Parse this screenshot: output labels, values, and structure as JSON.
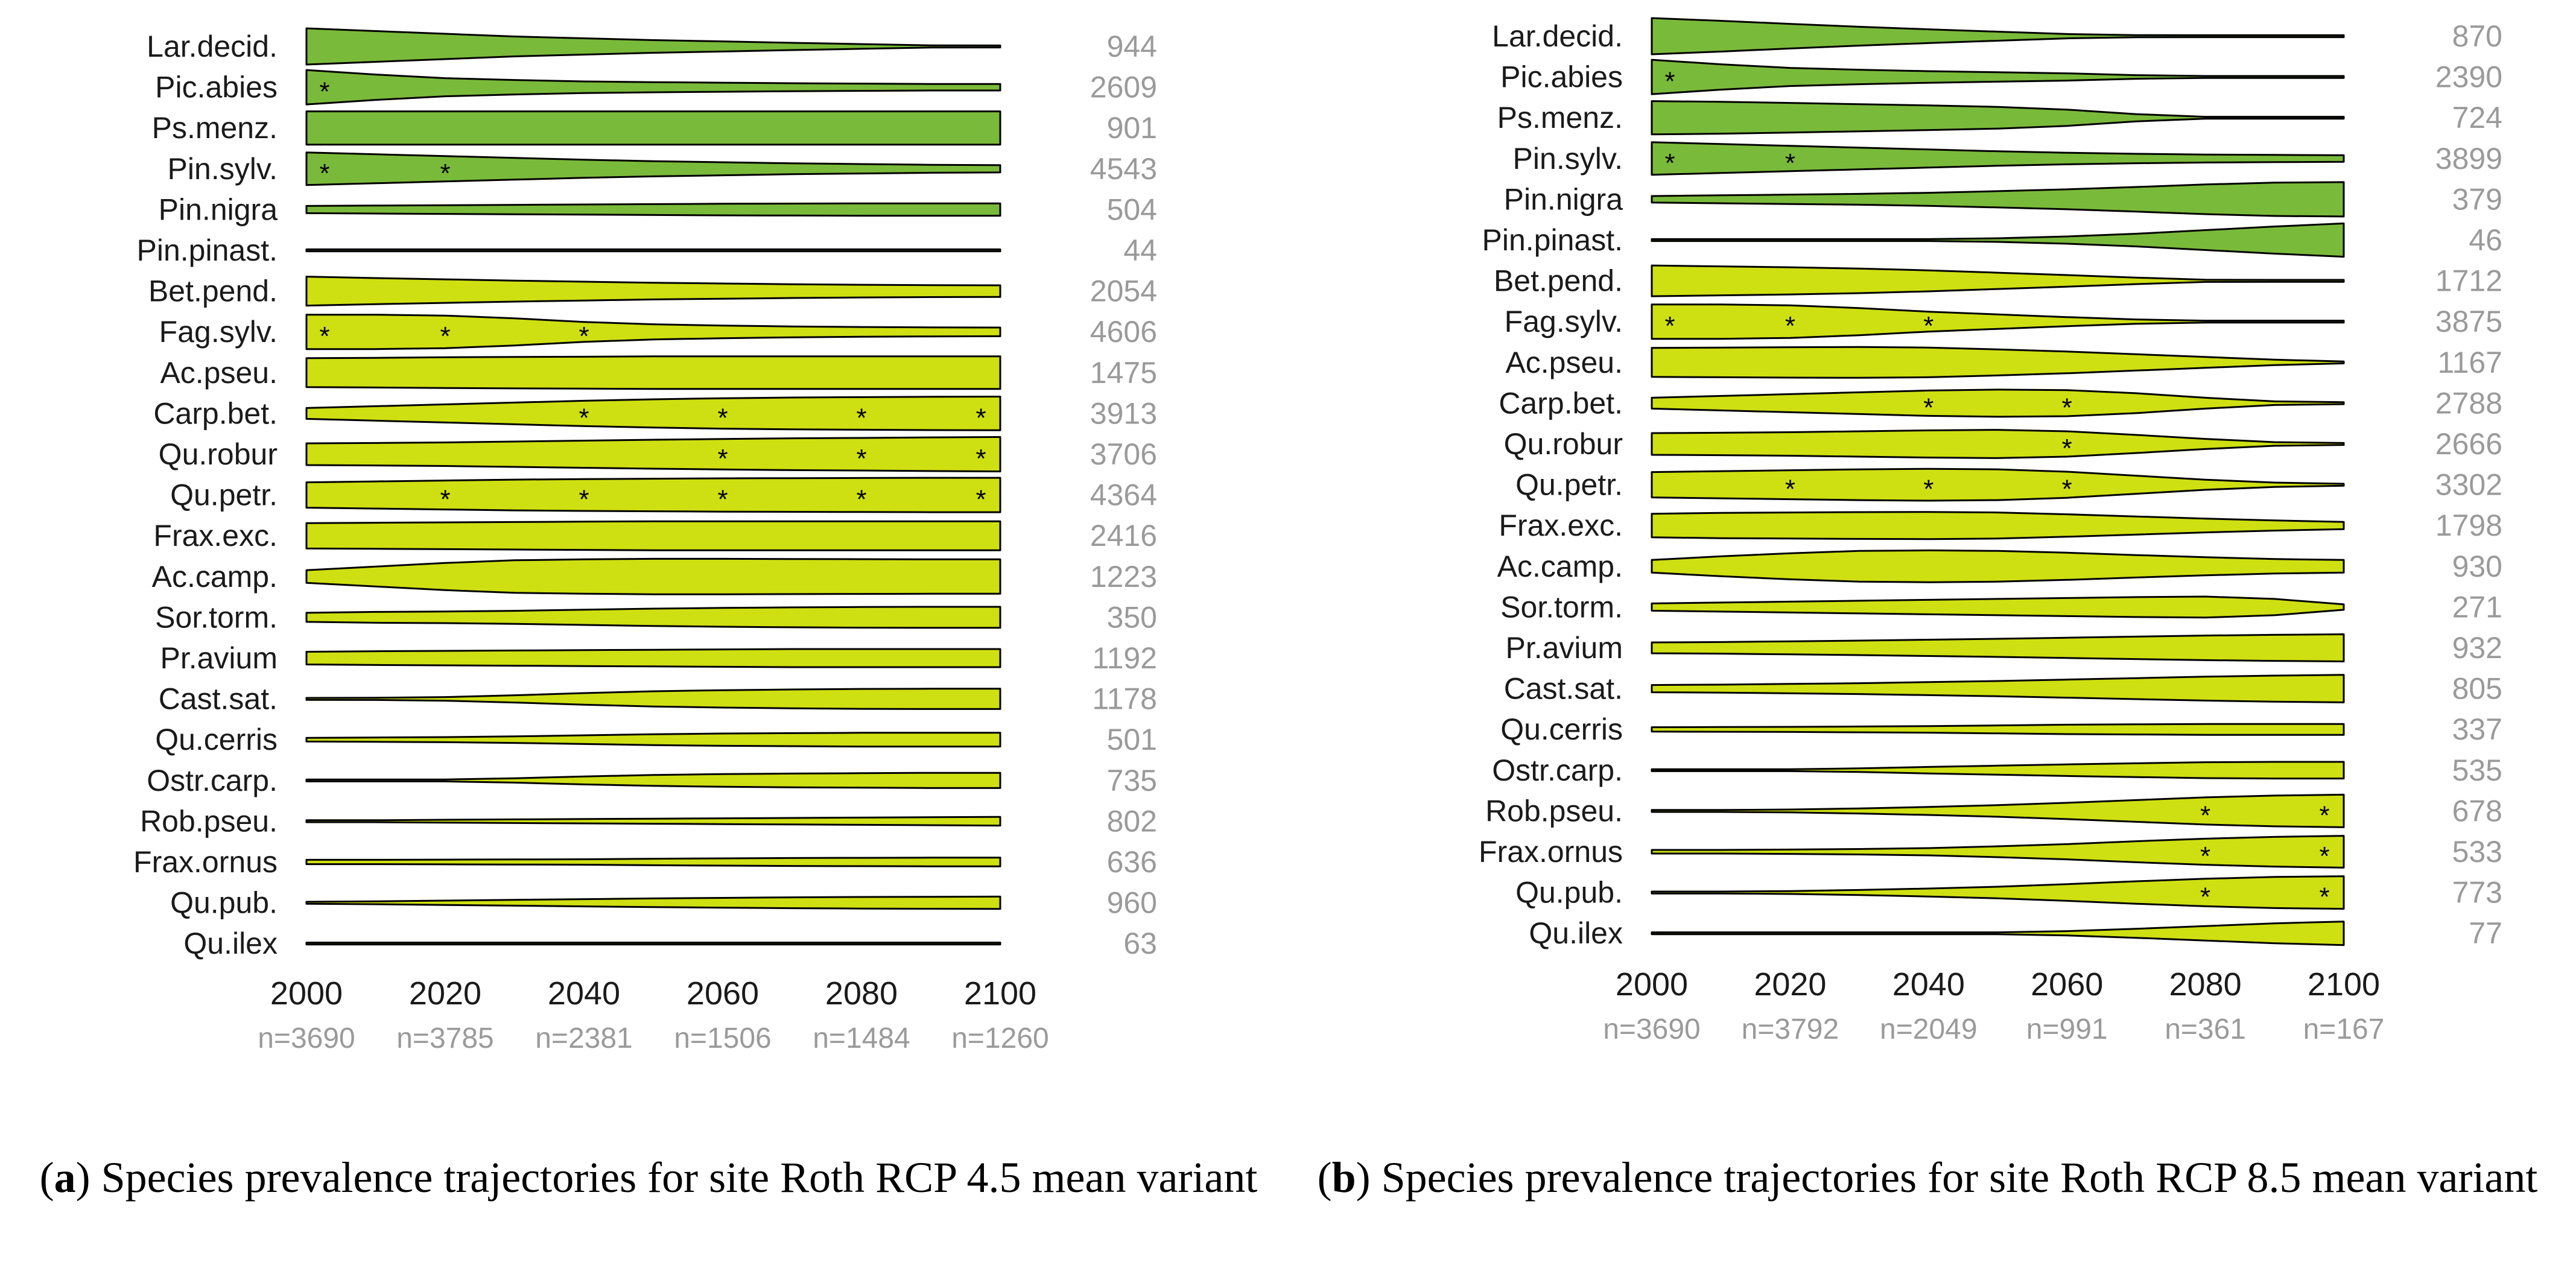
{
  "colors": {
    "conifer": "#7aba3a",
    "broadleaf": "#cfe012",
    "outline": "#000000"
  },
  "chart_data": [
    {
      "type": "violin-trajectory",
      "panel_label": "a",
      "caption": "Species prevalence trajectories for site Roth RCP 4.5 mean variant",
      "x_ticks": [
        2000,
        2020,
        2040,
        2060,
        2080,
        2100
      ],
      "n_labels": [
        "n=3690",
        "n=3785",
        "n=2381",
        "n=1506",
        "n=1484",
        "n=1260"
      ],
      "species": [
        {
          "name": "Lar.decid.",
          "count": "944",
          "group": "conifer",
          "widths": [
            1.0,
            0.85,
            0.7,
            0.55,
            0.45,
            0.35,
            0.28,
            0.2,
            0.13,
            0.06,
            0.02
          ],
          "stars": []
        },
        {
          "name": "Pic.abies",
          "count": "2609",
          "group": "conifer",
          "widths": [
            0.95,
            0.7,
            0.5,
            0.4,
            0.32,
            0.28,
            0.25,
            0.22,
            0.2,
            0.18,
            0.18
          ],
          "stars": [
            2000
          ]
        },
        {
          "name": "Ps.menz.",
          "count": "901",
          "group": "conifer",
          "widths": [
            0.92,
            0.92,
            0.92,
            0.92,
            0.92,
            0.92,
            0.92,
            0.92,
            0.92,
            0.92,
            0.92
          ],
          "stars": []
        },
        {
          "name": "Pin.sylv.",
          "count": "4543",
          "group": "conifer",
          "widths": [
            0.9,
            0.8,
            0.7,
            0.6,
            0.5,
            0.42,
            0.36,
            0.3,
            0.26,
            0.22,
            0.2
          ],
          "stars": [
            2000,
            2020
          ]
        },
        {
          "name": "Pin.nigra",
          "count": "504",
          "group": "conifer",
          "widths": [
            0.2,
            0.22,
            0.24,
            0.26,
            0.28,
            0.3,
            0.32,
            0.33,
            0.34,
            0.34,
            0.34
          ],
          "stars": []
        },
        {
          "name": "Pin.pinast.",
          "count": "44",
          "group": "conifer",
          "widths": [
            0.02,
            0.02,
            0.02,
            0.02,
            0.02,
            0.02,
            0.02,
            0.02,
            0.02,
            0.02,
            0.02
          ],
          "stars": []
        },
        {
          "name": "Bet.pend.",
          "count": "2054",
          "group": "broadleaf",
          "widths": [
            0.8,
            0.72,
            0.65,
            0.58,
            0.52,
            0.46,
            0.42,
            0.38,
            0.35,
            0.33,
            0.32
          ],
          "stars": []
        },
        {
          "name": "Fag.sylv.",
          "count": "4606",
          "group": "broadleaf",
          "widths": [
            0.95,
            0.95,
            0.9,
            0.75,
            0.55,
            0.42,
            0.35,
            0.3,
            0.27,
            0.25,
            0.24
          ],
          "stars": [
            2000,
            2020,
            2040
          ]
        },
        {
          "name": "Ac.pseu.",
          "count": "1475",
          "group": "broadleaf",
          "widths": [
            0.8,
            0.82,
            0.85,
            0.87,
            0.88,
            0.9,
            0.9,
            0.9,
            0.9,
            0.9,
            0.9
          ],
          "stars": []
        },
        {
          "name": "Carp.bet.",
          "count": "3913",
          "group": "broadleaf",
          "widths": [
            0.3,
            0.4,
            0.5,
            0.6,
            0.7,
            0.78,
            0.84,
            0.88,
            0.9,
            0.92,
            0.93
          ],
          "stars": [
            2040,
            2060,
            2080,
            2100
          ]
        },
        {
          "name": "Qu.robur",
          "count": "3706",
          "group": "broadleaf",
          "widths": [
            0.6,
            0.62,
            0.65,
            0.7,
            0.75,
            0.8,
            0.84,
            0.88,
            0.9,
            0.93,
            0.95
          ],
          "stars": [
            2060,
            2080,
            2100
          ]
        },
        {
          "name": "Qu.petr.",
          "count": "4364",
          "group": "broadleaf",
          "widths": [
            0.7,
            0.75,
            0.8,
            0.85,
            0.88,
            0.9,
            0.92,
            0.93,
            0.94,
            0.95,
            0.95
          ],
          "stars": [
            2020,
            2040,
            2060,
            2080,
            2100
          ]
        },
        {
          "name": "Frax.exc.",
          "count": "2416",
          "group": "broadleaf",
          "widths": [
            0.7,
            0.72,
            0.74,
            0.76,
            0.78,
            0.8,
            0.8,
            0.8,
            0.8,
            0.8,
            0.8
          ],
          "stars": []
        },
        {
          "name": "Ac.camp.",
          "count": "1223",
          "group": "broadleaf",
          "widths": [
            0.35,
            0.55,
            0.75,
            0.9,
            0.95,
            0.98,
            0.98,
            0.97,
            0.96,
            0.95,
            0.95
          ],
          "stars": []
        },
        {
          "name": "Sor.torm.",
          "count": "350",
          "group": "broadleaf",
          "widths": [
            0.25,
            0.3,
            0.32,
            0.36,
            0.42,
            0.48,
            0.52,
            0.55,
            0.57,
            0.58,
            0.58
          ],
          "stars": []
        },
        {
          "name": "Pr.avium",
          "count": "1192",
          "group": "broadleaf",
          "widths": [
            0.35,
            0.38,
            0.4,
            0.42,
            0.44,
            0.46,
            0.48,
            0.5,
            0.5,
            0.5,
            0.5
          ],
          "stars": []
        },
        {
          "name": "Cast.sat.",
          "count": "1178",
          "group": "broadleaf",
          "widths": [
            0.04,
            0.06,
            0.1,
            0.2,
            0.32,
            0.42,
            0.48,
            0.52,
            0.55,
            0.56,
            0.56
          ],
          "stars": []
        },
        {
          "name": "Qu.cerris",
          "count": "501",
          "group": "broadleaf",
          "widths": [
            0.1,
            0.12,
            0.14,
            0.18,
            0.24,
            0.3,
            0.34,
            0.36,
            0.38,
            0.38,
            0.38
          ],
          "stars": []
        },
        {
          "name": "Ostr.carp.",
          "count": "735",
          "group": "broadleaf",
          "widths": [
            0.03,
            0.03,
            0.04,
            0.12,
            0.22,
            0.3,
            0.35,
            0.38,
            0.4,
            0.42,
            0.42
          ],
          "stars": []
        },
        {
          "name": "Rob.pseu.",
          "count": "802",
          "group": "broadleaf",
          "widths": [
            0.03,
            0.05,
            0.08,
            0.1,
            0.12,
            0.14,
            0.16,
            0.18,
            0.2,
            0.22,
            0.24
          ],
          "stars": []
        },
        {
          "name": "Frax.ornus",
          "count": "636",
          "group": "broadleaf",
          "widths": [
            0.12,
            0.12,
            0.13,
            0.14,
            0.15,
            0.18,
            0.2,
            0.22,
            0.23,
            0.24,
            0.24
          ],
          "stars": []
        },
        {
          "name": "Qu.pub.",
          "count": "960",
          "group": "broadleaf",
          "widths": [
            0.04,
            0.08,
            0.12,
            0.16,
            0.2,
            0.24,
            0.27,
            0.3,
            0.32,
            0.33,
            0.34
          ],
          "stars": []
        },
        {
          "name": "Qu.ilex",
          "count": "63",
          "group": "broadleaf",
          "widths": [
            0.02,
            0.02,
            0.02,
            0.02,
            0.02,
            0.02,
            0.02,
            0.02,
            0.02,
            0.02,
            0.02
          ],
          "stars": []
        }
      ]
    },
    {
      "type": "violin-trajectory",
      "panel_label": "b",
      "caption": "Species prevalence trajectories for site Roth RCP 8.5 mean variant",
      "x_ticks": [
        2000,
        2020,
        2040,
        2060,
        2080,
        2100
      ],
      "n_labels": [
        "n=3690",
        "n=3792",
        "n=2049",
        "n=991",
        "n=361",
        "n=167"
      ],
      "species": [
        {
          "name": "Lar.decid.",
          "count": "870",
          "group": "conifer",
          "widths": [
            1.0,
            0.85,
            0.68,
            0.52,
            0.38,
            0.25,
            0.12,
            0.06,
            0.03,
            0.02,
            0.02
          ],
          "stars": []
        },
        {
          "name": "Pic.abies",
          "count": "2390",
          "group": "conifer",
          "widths": [
            0.95,
            0.7,
            0.5,
            0.4,
            0.32,
            0.26,
            0.2,
            0.1,
            0.05,
            0.02,
            0.02
          ],
          "stars": [
            2000
          ]
        },
        {
          "name": "Ps.menz.",
          "count": "724",
          "group": "conifer",
          "widths": [
            0.92,
            0.88,
            0.82,
            0.75,
            0.68,
            0.6,
            0.45,
            0.2,
            0.05,
            0.02,
            0.02
          ],
          "stars": []
        },
        {
          "name": "Pin.sylv.",
          "count": "3899",
          "group": "conifer",
          "widths": [
            0.9,
            0.8,
            0.7,
            0.6,
            0.5,
            0.4,
            0.32,
            0.26,
            0.22,
            0.2,
            0.18
          ],
          "stars": [
            2000,
            2020
          ]
        },
        {
          "name": "Pin.nigra",
          "count": "379",
          "group": "conifer",
          "widths": [
            0.18,
            0.22,
            0.26,
            0.3,
            0.36,
            0.45,
            0.55,
            0.68,
            0.82,
            0.92,
            0.95
          ],
          "stars": []
        },
        {
          "name": "Pin.pinast.",
          "count": "46",
          "group": "conifer",
          "widths": [
            0.02,
            0.02,
            0.02,
            0.02,
            0.04,
            0.1,
            0.2,
            0.35,
            0.55,
            0.75,
            0.92
          ],
          "stars": []
        },
        {
          "name": "Bet.pend.",
          "count": "1712",
          "group": "broadleaf",
          "widths": [
            0.85,
            0.8,
            0.75,
            0.68,
            0.58,
            0.45,
            0.32,
            0.18,
            0.06,
            0.02,
            0.02
          ],
          "stars": []
        },
        {
          "name": "Fag.sylv.",
          "count": "3875",
          "group": "broadleaf",
          "widths": [
            0.95,
            0.95,
            0.9,
            0.75,
            0.55,
            0.4,
            0.25,
            0.12,
            0.04,
            0.02,
            0.02
          ],
          "stars": [
            2000,
            2020,
            2040
          ]
        },
        {
          "name": "Ac.pseu.",
          "count": "1167",
          "group": "broadleaf",
          "widths": [
            0.8,
            0.82,
            0.84,
            0.85,
            0.82,
            0.72,
            0.6,
            0.45,
            0.3,
            0.15,
            0.05
          ],
          "stars": []
        },
        {
          "name": "Carp.bet.",
          "count": "2788",
          "group": "broadleaf",
          "widths": [
            0.3,
            0.4,
            0.5,
            0.6,
            0.7,
            0.75,
            0.72,
            0.55,
            0.3,
            0.1,
            0.02
          ],
          "stars": [
            2040,
            2060
          ]
        },
        {
          "name": "Qu.robur",
          "count": "2666",
          "group": "broadleaf",
          "widths": [
            0.6,
            0.62,
            0.65,
            0.7,
            0.75,
            0.78,
            0.7,
            0.5,
            0.28,
            0.1,
            0.02
          ],
          "stars": [
            2060
          ]
        },
        {
          "name": "Qu.petr.",
          "count": "3302",
          "group": "broadleaf",
          "widths": [
            0.7,
            0.75,
            0.8,
            0.85,
            0.88,
            0.85,
            0.72,
            0.5,
            0.28,
            0.12,
            0.04
          ],
          "stars": [
            2020,
            2040,
            2060
          ]
        },
        {
          "name": "Frax.exc.",
          "count": "1798",
          "group": "broadleaf",
          "widths": [
            0.65,
            0.7,
            0.72,
            0.74,
            0.75,
            0.72,
            0.62,
            0.5,
            0.38,
            0.28,
            0.2
          ],
          "stars": []
        },
        {
          "name": "Ac.camp.",
          "count": "930",
          "group": "broadleaf",
          "widths": [
            0.35,
            0.55,
            0.72,
            0.85,
            0.88,
            0.85,
            0.75,
            0.62,
            0.5,
            0.4,
            0.35
          ],
          "stars": []
        },
        {
          "name": "Sor.torm.",
          "count": "271",
          "group": "broadleaf",
          "widths": [
            0.2,
            0.25,
            0.3,
            0.35,
            0.4,
            0.45,
            0.5,
            0.55,
            0.58,
            0.45,
            0.15
          ],
          "stars": []
        },
        {
          "name": "Pr.avium",
          "count": "932",
          "group": "broadleaf",
          "widths": [
            0.3,
            0.32,
            0.36,
            0.4,
            0.45,
            0.5,
            0.56,
            0.62,
            0.68,
            0.72,
            0.75
          ],
          "stars": []
        },
        {
          "name": "Cast.sat.",
          "count": "805",
          "group": "broadleaf",
          "widths": [
            0.2,
            0.22,
            0.26,
            0.3,
            0.36,
            0.42,
            0.5,
            0.58,
            0.66,
            0.72,
            0.76
          ],
          "stars": []
        },
        {
          "name": "Qu.cerris",
          "count": "337",
          "group": "broadleaf",
          "widths": [
            0.12,
            0.13,
            0.14,
            0.16,
            0.18,
            0.22,
            0.26,
            0.28,
            0.3,
            0.3,
            0.3
          ],
          "stars": []
        },
        {
          "name": "Ostr.carp.",
          "count": "535",
          "group": "broadleaf",
          "widths": [
            0.02,
            0.03,
            0.05,
            0.1,
            0.18,
            0.25,
            0.32,
            0.38,
            0.44,
            0.46,
            0.46
          ],
          "stars": []
        },
        {
          "name": "Rob.pseu.",
          "count": "678",
          "group": "broadleaf",
          "widths": [
            0.02,
            0.04,
            0.08,
            0.14,
            0.22,
            0.32,
            0.45,
            0.6,
            0.75,
            0.85,
            0.9
          ],
          "stars": [
            2080,
            2100
          ]
        },
        {
          "name": "Frax.ornus",
          "count": "533",
          "group": "broadleaf",
          "widths": [
            0.1,
            0.1,
            0.12,
            0.15,
            0.2,
            0.3,
            0.42,
            0.58,
            0.72,
            0.82,
            0.88
          ],
          "stars": [
            2080,
            2100
          ]
        },
        {
          "name": "Qu.pub.",
          "count": "773",
          "group": "broadleaf",
          "widths": [
            0.02,
            0.04,
            0.08,
            0.14,
            0.22,
            0.32,
            0.46,
            0.62,
            0.76,
            0.86,
            0.9
          ],
          "stars": [
            2080,
            2100
          ]
        },
        {
          "name": "Qu.ilex",
          "count": "77",
          "group": "broadleaf",
          "widths": [
            0.02,
            0.02,
            0.02,
            0.02,
            0.03,
            0.05,
            0.12,
            0.25,
            0.4,
            0.55,
            0.65
          ],
          "stars": []
        }
      ]
    }
  ]
}
